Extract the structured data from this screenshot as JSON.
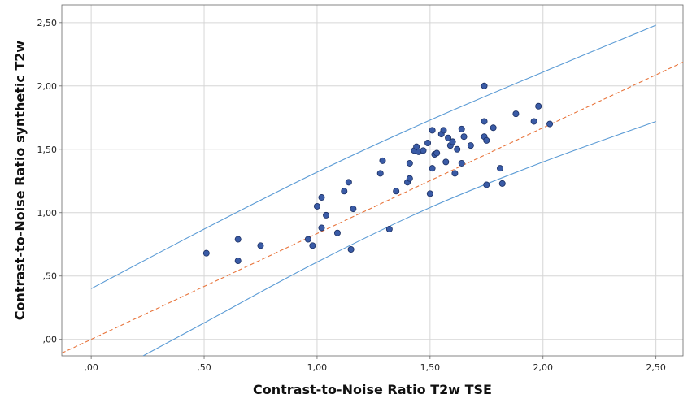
{
  "chart_data": {
    "type": "scatter",
    "title": "",
    "xlabel": "Contrast-to-Noise Ratio T2w TSE",
    "ylabel": "Contrast-to-Noise Ratio synthetic T2w",
    "xlim": [
      -0.13,
      2.62
    ],
    "ylim": [
      -0.13,
      2.64
    ],
    "x_ticks": [
      {
        "value": 0,
        "label": ",00"
      },
      {
        "value": 0.5,
        "label": ",50"
      },
      {
        "value": 1.0,
        "label": "1,00"
      },
      {
        "value": 1.5,
        "label": "1,50"
      },
      {
        "value": 2.0,
        "label": "2,00"
      },
      {
        "value": 2.5,
        "label": "2,50"
      }
    ],
    "y_ticks": [
      {
        "value": 0,
        "label": ",00"
      },
      {
        "value": 0.5,
        "label": ",50"
      },
      {
        "value": 1.0,
        "label": "1,00"
      },
      {
        "value": 1.5,
        "label": "1,50"
      },
      {
        "value": 2.0,
        "label": "2,00"
      },
      {
        "value": 2.5,
        "label": "2,50"
      }
    ],
    "grid": true,
    "colors": {
      "points_fill": "#3a5ba6",
      "points_stroke": "#1b2f63",
      "fit_line": "#e8743b",
      "bounds": "#5b9bd5",
      "grid": "#d6d6d6"
    },
    "points": [
      [
        0.51,
        0.68
      ],
      [
        0.65,
        0.79
      ],
      [
        0.65,
        0.62
      ],
      [
        0.75,
        0.74
      ],
      [
        0.96,
        0.79
      ],
      [
        0.98,
        0.74
      ],
      [
        1.0,
        1.05
      ],
      [
        1.02,
        1.12
      ],
      [
        1.02,
        0.88
      ],
      [
        1.04,
        0.98
      ],
      [
        1.09,
        0.84
      ],
      [
        1.12,
        1.17
      ],
      [
        1.14,
        1.24
      ],
      [
        1.15,
        0.71
      ],
      [
        1.16,
        1.03
      ],
      [
        1.28,
        1.31
      ],
      [
        1.29,
        1.41
      ],
      [
        1.32,
        0.87
      ],
      [
        1.35,
        1.17
      ],
      [
        1.4,
        1.24
      ],
      [
        1.41,
        1.27
      ],
      [
        1.41,
        1.39
      ],
      [
        1.43,
        1.49
      ],
      [
        1.44,
        1.52
      ],
      [
        1.45,
        1.48
      ],
      [
        1.47,
        1.49
      ],
      [
        1.49,
        1.55
      ],
      [
        1.5,
        1.15
      ],
      [
        1.51,
        1.35
      ],
      [
        1.51,
        1.65
      ],
      [
        1.52,
        1.46
      ],
      [
        1.53,
        1.47
      ],
      [
        1.55,
        1.62
      ],
      [
        1.56,
        1.65
      ],
      [
        1.57,
        1.4
      ],
      [
        1.58,
        1.59
      ],
      [
        1.59,
        1.53
      ],
      [
        1.6,
        1.56
      ],
      [
        1.61,
        1.31
      ],
      [
        1.62,
        1.5
      ],
      [
        1.64,
        1.66
      ],
      [
        1.64,
        1.39
      ],
      [
        1.65,
        1.6
      ],
      [
        1.68,
        1.53
      ],
      [
        1.74,
        2.0
      ],
      [
        1.74,
        1.72
      ],
      [
        1.74,
        1.6
      ],
      [
        1.75,
        1.22
      ],
      [
        1.75,
        1.57
      ],
      [
        1.78,
        1.67
      ],
      [
        1.81,
        1.35
      ],
      [
        1.82,
        1.23
      ],
      [
        1.88,
        1.78
      ],
      [
        1.96,
        1.72
      ],
      [
        1.98,
        1.84
      ],
      [
        2.03,
        1.7
      ]
    ],
    "fit_line": {
      "intercept": 0.0,
      "slope": 0.835,
      "x_range": [
        -0.13,
        2.62
      ]
    },
    "bounds": {
      "upper": [
        [
          0.0,
          0.4
        ],
        [
          0.5,
          0.87
        ],
        [
          1.0,
          1.32
        ],
        [
          1.5,
          1.73
        ],
        [
          2.0,
          2.11
        ],
        [
          2.5,
          2.48
        ]
      ],
      "lower": [
        [
          0.23,
          -0.13
        ],
        [
          0.5,
          0.13
        ],
        [
          1.0,
          0.61
        ],
        [
          1.5,
          1.04
        ],
        [
          2.0,
          1.4
        ],
        [
          2.5,
          1.72
        ]
      ]
    }
  }
}
